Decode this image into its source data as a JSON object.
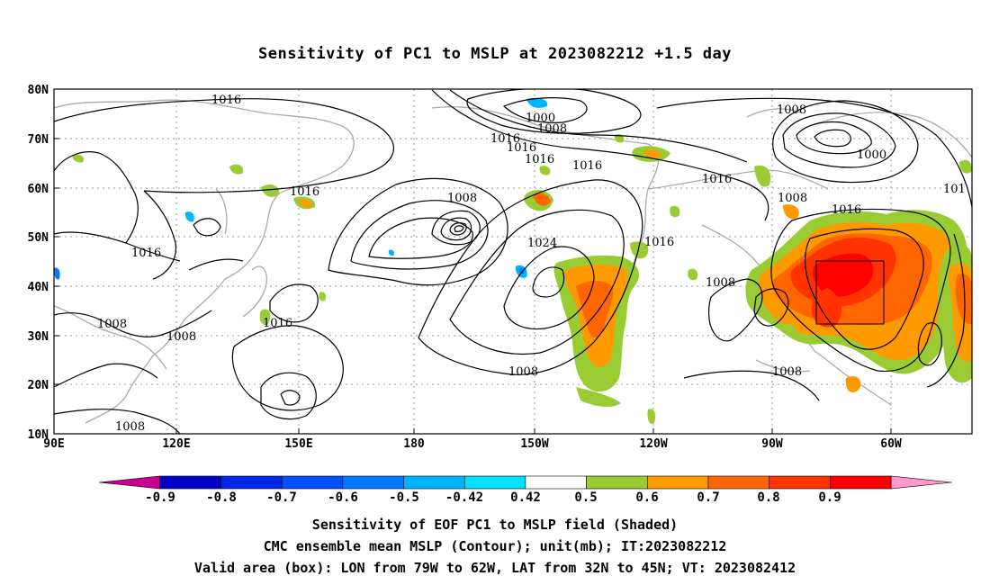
{
  "title": "Sensitivity of PC1 to MSLP at 2023082212 +1.5 day",
  "map": {
    "lat_labels": [
      "80N",
      "70N",
      "60N",
      "50N",
      "40N",
      "30N",
      "20N",
      "10N"
    ],
    "lon_labels": [
      "90E",
      "120E",
      "150E",
      "180",
      "150W",
      "120W",
      "90W",
      "60W"
    ],
    "contour_labels": [
      "1016",
      "1000",
      "1008",
      "1016",
      "1016",
      "1016",
      "1016",
      "1008",
      "1000",
      "101",
      "1016",
      "1008",
      "1008",
      "1016",
      "1016",
      "1016",
      "1024",
      "1008",
      "1016",
      "1008",
      "1008",
      "1016",
      "1008",
      "1008"
    ],
    "box": {
      "lon_from": "79W",
      "lon_to": "62W",
      "lat_from": "32N",
      "lat_to": "45N"
    }
  },
  "colorbar": {
    "labels": [
      "-0.9",
      "-0.8",
      "-0.7",
      "-0.6",
      "-0.5",
      "-0.42",
      "0.42",
      "0.5",
      "0.6",
      "0.7",
      "0.8",
      "0.9"
    ],
    "colors": [
      "#c8008c",
      "#0000c8",
      "#0028e6",
      "#0050ff",
      "#0078ff",
      "#00b4ff",
      "#00e1ff",
      "#ffffff",
      "#99cc33",
      "#ff9900",
      "#ff6600",
      "#ff3300",
      "#ff0000",
      "#ff99cc"
    ]
  },
  "captions": {
    "line1": "Sensitivity of EOF PC1 to MSLP field (Shaded)",
    "line2": "CMC ensemble mean MSLP (Contour); unit(mb); IT:2023082212",
    "line3": "Valid area (box): LON from 79W to 62W, LAT from 32N to 45N; VT: 2023082412"
  }
}
